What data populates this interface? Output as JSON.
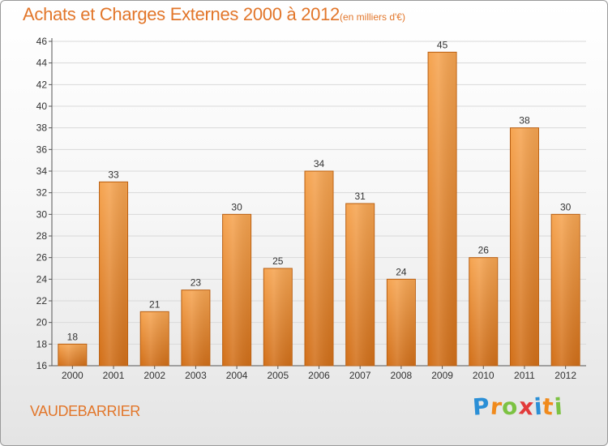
{
  "header": {
    "title": "Achats et Charges Externes 2000 à 2012",
    "subtitle": "(en milliers d'€)"
  },
  "footer": {
    "commune": "VAUDEBARRIER",
    "logo_text": "Proxiti",
    "logo_colors": [
      "#2b8fd6",
      "#f08a1c",
      "#7cc242",
      "#e23b3b",
      "#2b8fd6",
      "#f08a1c",
      "#7cc242"
    ]
  },
  "colors": {
    "bar_top": "#f6a552",
    "bar_bottom": "#d2701a",
    "bar_edge": "#b85f12",
    "grid": "#d9d9d9",
    "axis": "#555555",
    "title": "#e2762a"
  },
  "chart_data": {
    "type": "bar",
    "categories": [
      "2000",
      "2001",
      "2002",
      "2003",
      "2004",
      "2005",
      "2006",
      "2007",
      "2008",
      "2009",
      "2010",
      "2011",
      "2012"
    ],
    "values": [
      18,
      33,
      21,
      23,
      30,
      25,
      34,
      31,
      24,
      45,
      26,
      38,
      30
    ],
    "ylim": [
      16,
      46
    ],
    "yticks": [
      16,
      18,
      20,
      22,
      24,
      26,
      28,
      30,
      32,
      34,
      36,
      38,
      40,
      42,
      44,
      46
    ],
    "title": "Achats et Charges Externes 2000 à 2012",
    "subtitle": "(en milliers d'€)",
    "grid": true,
    "data_labels": true
  }
}
